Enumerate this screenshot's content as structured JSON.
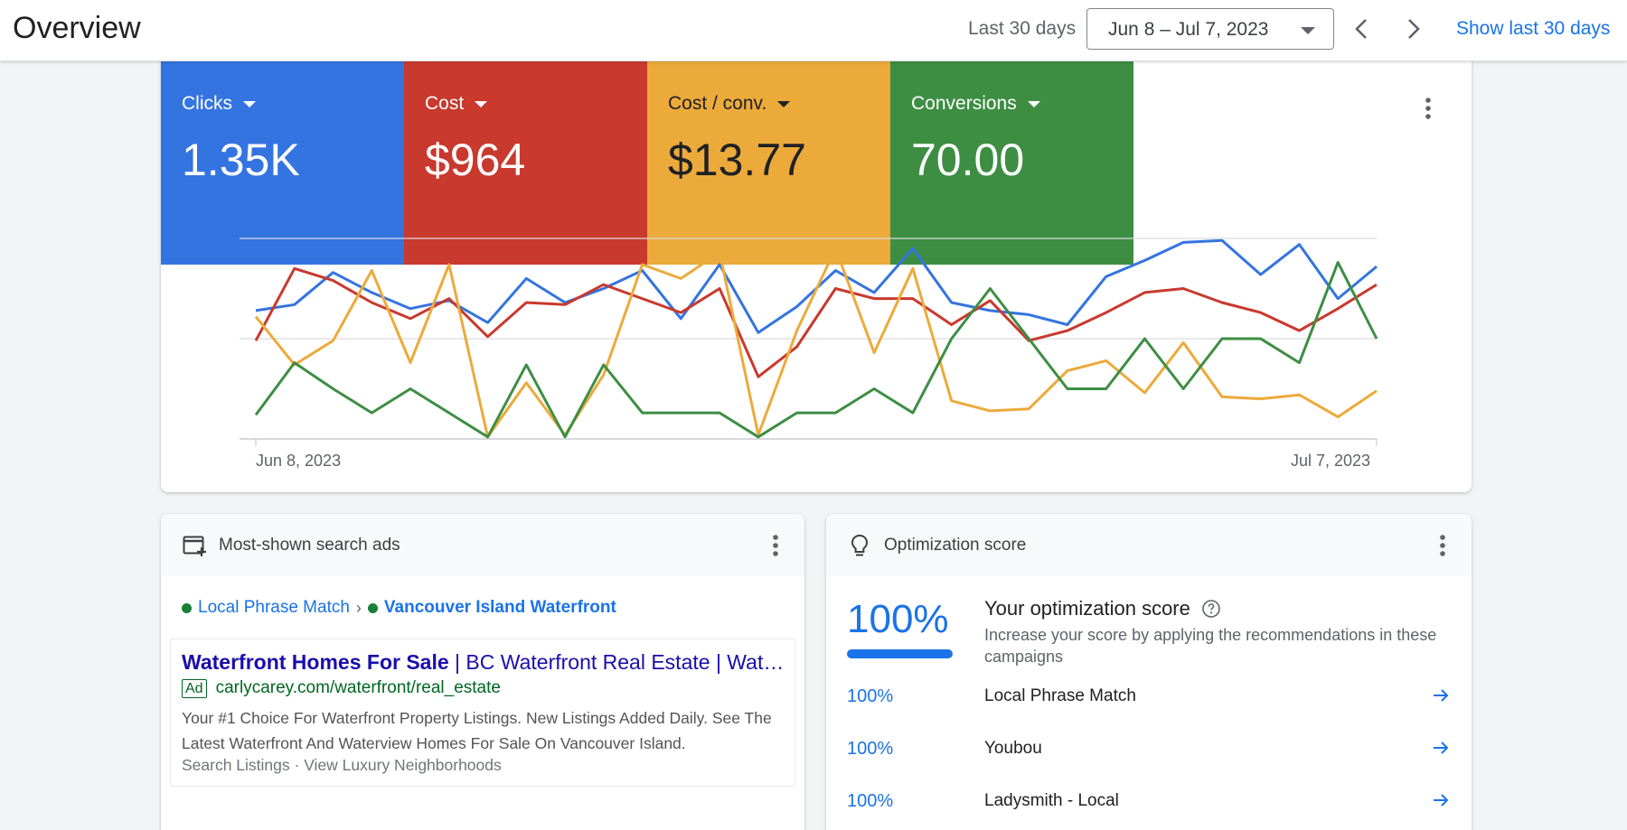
{
  "header": {
    "title": "Overview",
    "range_label": "Last 30 days",
    "date_range": "Jun 8 – Jul 7, 2023",
    "show_link": "Show last 30 days"
  },
  "metrics": [
    {
      "label": "Clicks",
      "value": "1.35K",
      "color": "#3474e0"
    },
    {
      "label": "Cost",
      "value": "$964",
      "color": "#c9392e"
    },
    {
      "label": "Cost / conv.",
      "value": "$13.77",
      "color": "#ecaa3b"
    },
    {
      "label": "Conversions",
      "value": "70.00",
      "color": "#3d8e43"
    }
  ],
  "chart_data": {
    "type": "line",
    "x_start_label": "Jun 8, 2023",
    "x_end_label": "Jul 7, 2023",
    "grid": true,
    "series": [
      {
        "name": "Clicks",
        "color": "#3474e0",
        "values": [
          0.64,
          0.67,
          0.83,
          0.73,
          0.65,
          0.69,
          0.58,
          0.8,
          0.68,
          0.75,
          0.84,
          0.6,
          0.87,
          0.53,
          0.66,
          0.84,
          0.73,
          0.95,
          0.68,
          0.64,
          0.62,
          0.57,
          0.81,
          0.89,
          0.98,
          0.99,
          0.82,
          0.97,
          0.7,
          0.86
        ]
      },
      {
        "name": "Cost",
        "color": "#c9392e",
        "values": [
          0.49,
          0.85,
          0.79,
          0.68,
          0.6,
          0.7,
          0.51,
          0.68,
          0.67,
          0.77,
          0.7,
          0.63,
          0.75,
          0.31,
          0.46,
          0.75,
          0.7,
          0.7,
          0.57,
          0.69,
          0.49,
          0.54,
          0.63,
          0.73,
          0.75,
          0.68,
          0.63,
          0.54,
          0.65,
          0.77
        ]
      },
      {
        "name": "Cost / conv.",
        "color": "#ecaa3b",
        "values": [
          0.61,
          0.37,
          0.49,
          0.84,
          0.38,
          0.87,
          0.01,
          0.28,
          0.02,
          0.32,
          0.87,
          0.8,
          0.93,
          0.02,
          0.54,
          0.95,
          0.43,
          0.85,
          0.19,
          0.14,
          0.15,
          0.34,
          0.39,
          0.23,
          0.48,
          0.21,
          0.2,
          0.22,
          0.11,
          0.24
        ]
      },
      {
        "name": "Conversions",
        "color": "#3d8e43",
        "values": [
          0.12,
          0.38,
          0.25,
          0.13,
          0.25,
          0.13,
          0.01,
          0.37,
          0.01,
          0.37,
          0.13,
          0.13,
          0.13,
          0.01,
          0.13,
          0.13,
          0.25,
          0.13,
          0.5,
          0.75,
          0.5,
          0.25,
          0.25,
          0.5,
          0.25,
          0.5,
          0.5,
          0.38,
          0.88,
          0.5
        ]
      }
    ]
  },
  "ads_card": {
    "title": "Most-shown search ads",
    "crumb_campaign": "Local Phrase Match",
    "crumb_sep": "›",
    "crumb_adgroup": "Vancouver Island Waterfront",
    "ad_title_bold": "Waterfront Homes For Sale",
    "ad_title_rest": " | BC Waterfront Real Estate | Waterfront Properties",
    "ad_badge": "Ad",
    "ad_url": "carlycarey.com/waterfront/real_estate",
    "ad_description": "Your #1 Choice For Waterfront Property Listings. New Listings Added Daily. See The Latest Waterfront And Waterview Homes For Sale On Vancouver Island.",
    "ad_links": "Search Listings · View Luxury Neighborhoods"
  },
  "opt_card": {
    "title": "Optimization score",
    "score": "100%",
    "score_fraction": 1.0,
    "heading": "Your optimization score",
    "subtitle": "Increase your score by applying the recommendations in these campaigns",
    "rows": [
      {
        "pct": "100%",
        "name": "Local Phrase Match"
      },
      {
        "pct": "100%",
        "name": "Youbou"
      },
      {
        "pct": "100%",
        "name": "Ladysmith - Local"
      }
    ]
  }
}
